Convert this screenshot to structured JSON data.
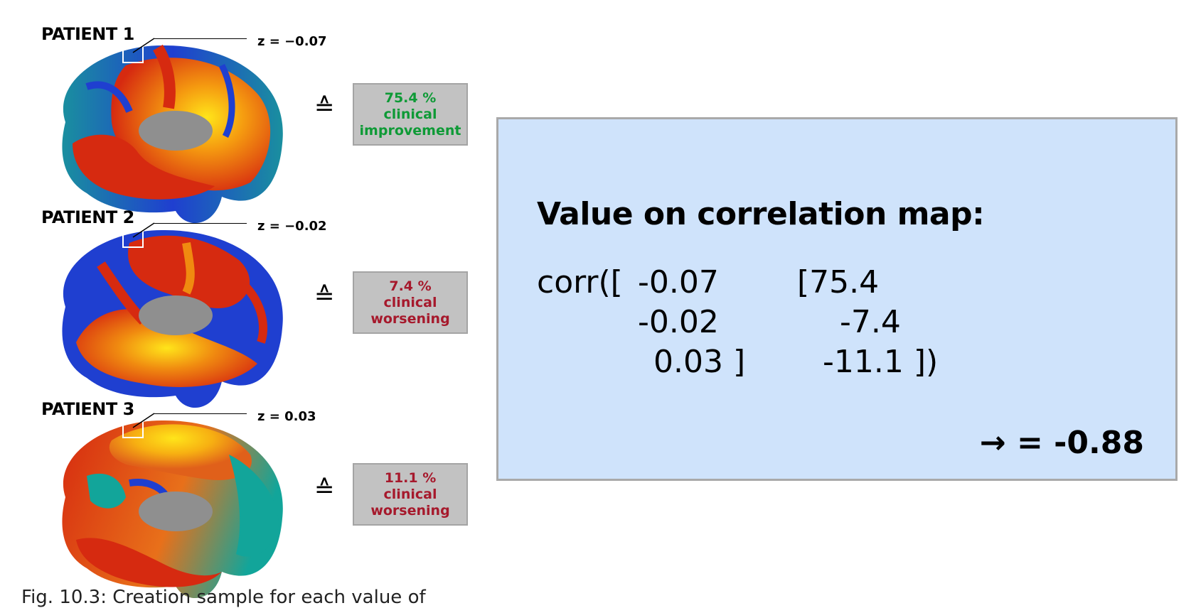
{
  "patients": [
    {
      "label": "PATIENT 1",
      "z": "z = −0.07",
      "outcome_value": "75.4 %",
      "outcome_line1": "clinical",
      "outcome_line2": "improvement",
      "outcome_color": "#0e9a36"
    },
    {
      "label": "PATIENT 2",
      "z": "z = −0.02",
      "outcome_value": "7.4 %",
      "outcome_line1": "clinical",
      "outcome_line2": "worsening",
      "outcome_color": "#a6192c"
    },
    {
      "label": "PATIENT 3",
      "z": "z = 0.03",
      "outcome_value": "11.1 %",
      "outcome_line1": "clinical",
      "outcome_line2": "worsening",
      "outcome_color": "#a6192c"
    }
  ],
  "correspondence_symbol": "≙",
  "panel": {
    "title": "Value on correlation map:",
    "func": "corr([",
    "z_values": [
      "-0.07",
      "-0.02",
      "0.03 ]"
    ],
    "outcome_values": [
      "[75.4",
      "-7.4",
      "-11.1 ])"
    ],
    "result": "→ = -0.88",
    "background_color": "#cfe3fb"
  },
  "brain_map_colors": {
    "negative": "#1f3fd0",
    "mid": "#0fa89a",
    "positive": "#d62a10",
    "peak": "#ffe51a"
  },
  "caption_fragment": "Fig. 10.3: Creation sample for each value of"
}
